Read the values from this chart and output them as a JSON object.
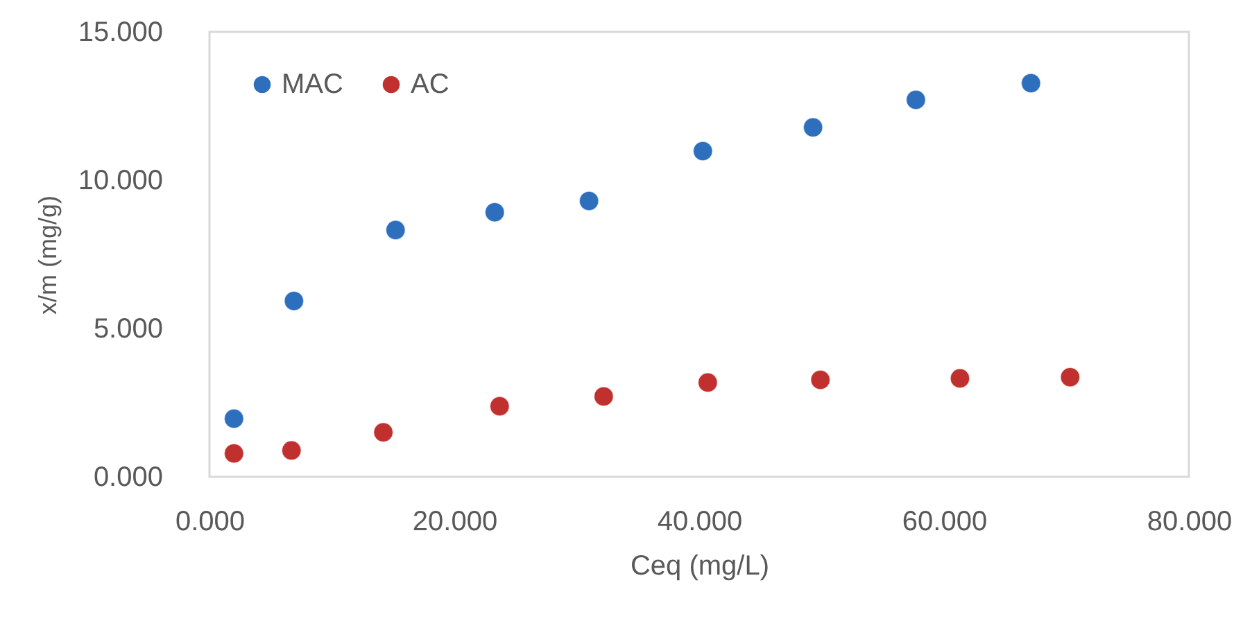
{
  "chart_data": {
    "type": "scatter",
    "xlabel": "Ceq (mg/L)",
    "ylabel": "x/m (mg/g)",
    "xlim": [
      0,
      80
    ],
    "ylim": [
      0,
      15
    ],
    "xticks": [
      {
        "value": 0,
        "label": "0.000"
      },
      {
        "value": 20,
        "label": "20.000"
      },
      {
        "value": 40,
        "label": "40.000"
      },
      {
        "value": 60,
        "label": "60.000"
      },
      {
        "value": 80,
        "label": "80.000"
      }
    ],
    "yticks": [
      {
        "value": 0,
        "label": "0.000"
      },
      {
        "value": 5,
        "label": "5.000"
      },
      {
        "value": 10,
        "label": "10.000"
      },
      {
        "value": 15,
        "label": "15.000"
      }
    ],
    "grid": false,
    "legend": "top left",
    "marker": "circle",
    "series": [
      {
        "name": "MAC",
        "color": "#2e6fbd",
        "x": [
          2.0,
          6.9,
          15.2,
          23.3,
          31.0,
          40.3,
          49.3,
          57.7,
          67.1
        ],
        "values": [
          1.96,
          5.93,
          8.32,
          8.92,
          9.3,
          10.98,
          11.78,
          12.71,
          13.27
        ]
      },
      {
        "name": "AC",
        "color": "#c0302e",
        "x": [
          2.0,
          6.7,
          14.2,
          23.7,
          32.2,
          40.7,
          49.9,
          61.3,
          70.3
        ],
        "values": [
          0.79,
          0.89,
          1.5,
          2.38,
          2.71,
          3.18,
          3.27,
          3.32,
          3.36
        ]
      }
    ]
  }
}
